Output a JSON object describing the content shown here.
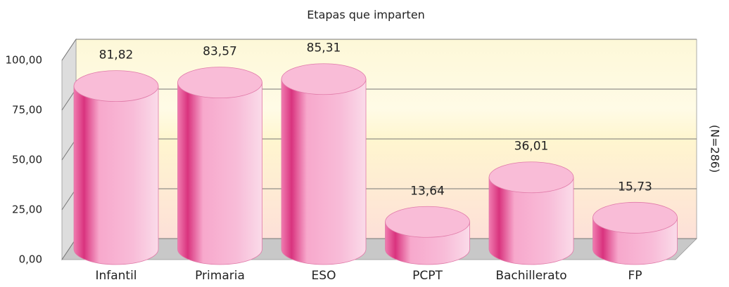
{
  "chart_data": {
    "type": "cylinder",
    "title": "Etapas que imparten",
    "note": "(N=286)",
    "categories": [
      "Infantil",
      "Primaria",
      "ESO",
      "PCPT",
      "Bachillerato",
      "FP"
    ],
    "values": [
      81.82,
      83.57,
      85.31,
      13.64,
      36.01,
      15.73
    ],
    "value_labels": [
      "81,82",
      "83,57",
      "85,31",
      "13,64",
      "36,01",
      "15,73"
    ],
    "color": "#e8589a",
    "ylim": [
      0,
      100
    ],
    "yticks": [
      {
        "value": 0,
        "label": "0,00"
      },
      {
        "value": 25,
        "label": "25,00"
      },
      {
        "value": 50,
        "label": "50,00"
      },
      {
        "value": 75,
        "label": "75,00"
      },
      {
        "value": 100,
        "label": "100,00"
      }
    ],
    "grid": true
  }
}
